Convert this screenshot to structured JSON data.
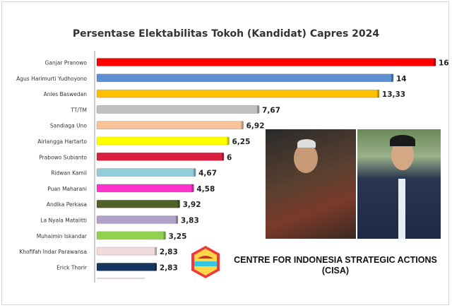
{
  "chart_data": {
    "type": "bar",
    "orientation": "horizontal",
    "title": "Persentase Elektabilitas Tokoh (Kandidat) Capres 2024",
    "categories": [
      "Ganjar Pranowo",
      "Agus Harimurti Yudhoyono",
      "Anies Baswedan",
      "TT/TM",
      "Sandiaga Uno",
      "Airlangga Hartarto",
      "Prabowo Subianto",
      "Ridwan Kamil",
      "Puan Maharani",
      "Andika Perkasa",
      "La Nyala Matalitti",
      "Muhaimin Iskandar",
      "Khofifah Indar Parawansa",
      "Erick Thorir"
    ],
    "values": [
      16,
      14,
      13.33,
      7.67,
      6.92,
      6.25,
      6,
      4.67,
      4.58,
      3.92,
      3.83,
      3.25,
      2.83,
      2.83
    ],
    "data_labels": [
      "16",
      "14",
      "13,33",
      "7,67",
      "6,92",
      "6,25",
      "6",
      "4,67",
      "4,58",
      "3,92",
      "3,83",
      "3,25",
      "2,83",
      "2,83"
    ],
    "colors": [
      "#ff0000",
      "#5b8fd6",
      "#ffc000",
      "#bfbfbf",
      "#f8c39b",
      "#ffff00",
      "#d9203e",
      "#92cddc",
      "#ff33cc",
      "#4f6228",
      "#b3a2c7",
      "#92d050",
      "#f2dcdb",
      "#17365d"
    ],
    "xlim": [
      0,
      16
    ],
    "grid": false,
    "legend": "none"
  },
  "organization": {
    "name": "CENTRE FOR INDONESIA STRATEGIC ACTIONS",
    "abbr": "(CISA)",
    "logo_text": "CISA"
  }
}
